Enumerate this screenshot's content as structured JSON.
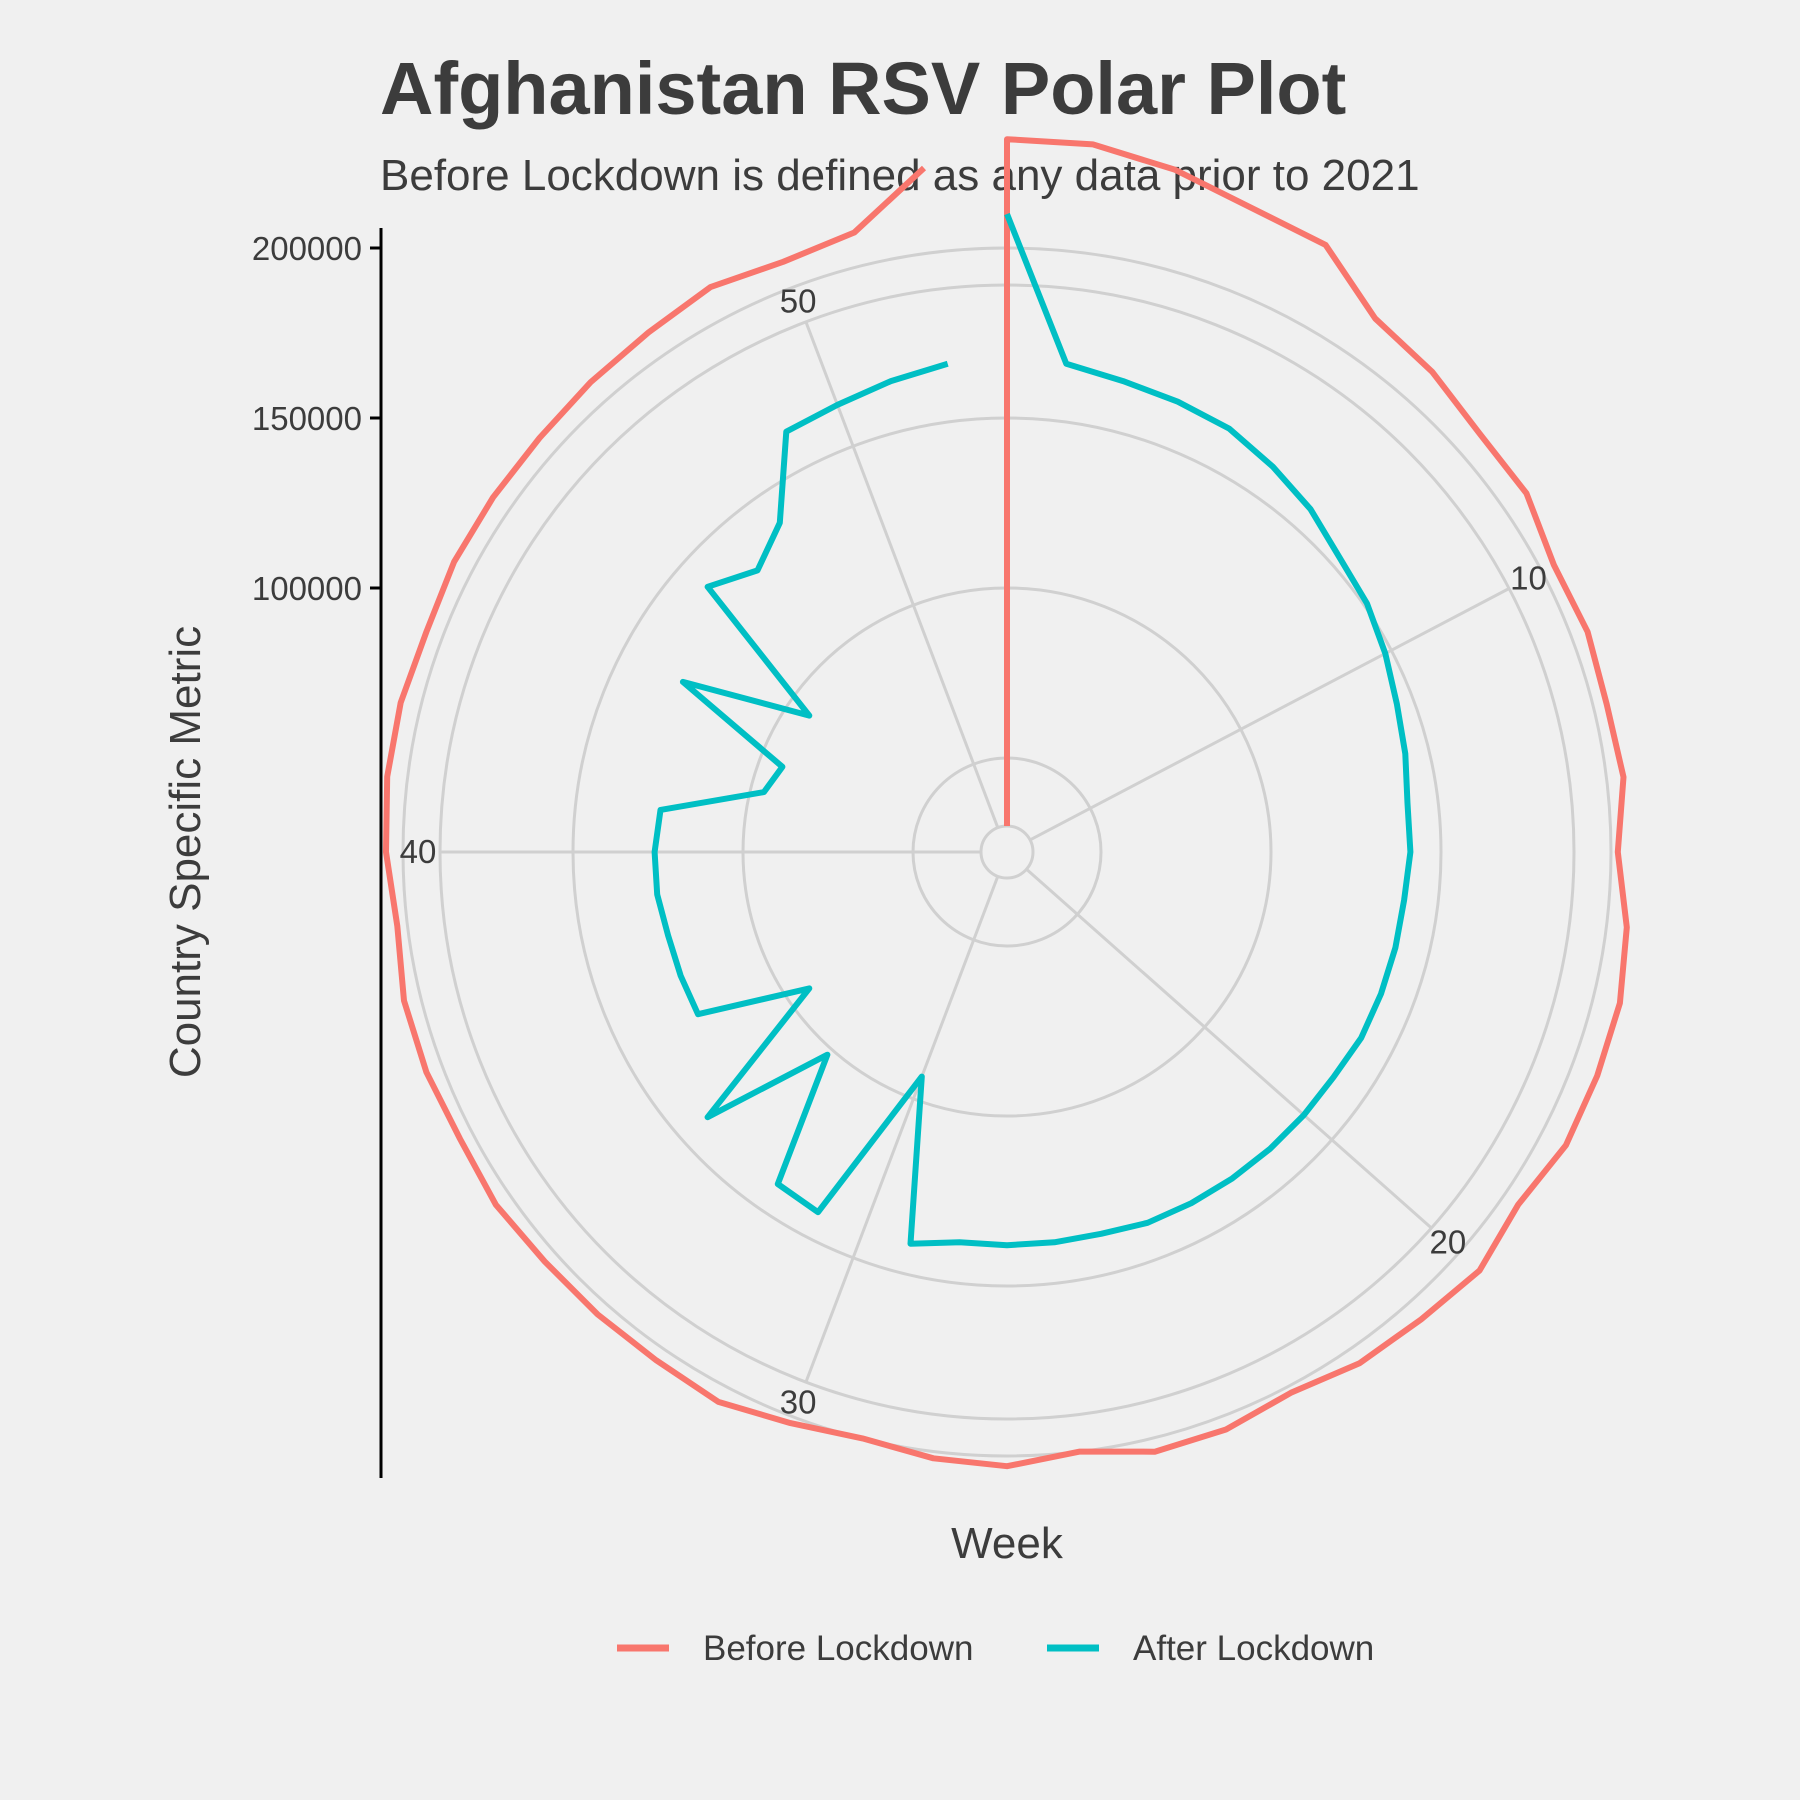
{
  "chart_data": {
    "type": "line",
    "coordinate_system": "polar",
    "title": "Afghanistan RSV Polar Plot",
    "subtitle": "Before Lockdown is defined as any data prior to 2021",
    "xlabel": "Week",
    "ylabel": "Country Specific Metric",
    "x_ticks": [
      "10",
      "20",
      "30",
      "40",
      "50"
    ],
    "y_ticks": [
      "100000",
      "150000",
      "200000"
    ],
    "ylim": [
      30000,
      245000
    ],
    "week_range": [
      1,
      53
    ],
    "grid": true,
    "legend_position": "bottom",
    "series": [
      {
        "name": "Before Lockdown",
        "color": "#F8766D",
        "x": [
          1,
          1,
          2,
          3,
          4,
          5,
          6,
          7,
          8,
          9,
          10,
          11,
          12,
          13,
          14,
          15,
          16,
          17,
          18,
          19,
          20,
          21,
          22,
          23,
          24,
          25,
          26,
          27,
          28,
          29,
          30,
          31,
          32,
          33,
          34,
          35,
          36,
          37,
          38,
          39,
          40,
          41,
          42,
          43,
          44,
          45,
          46,
          47,
          48,
          49,
          50,
          51,
          52
        ],
        "y": [
          30000,
          232000,
          232000,
          229000,
          225000,
          224000,
          213000,
          211000,
          208000,
          208000,
          204000,
          205000,
          204000,
          205000,
          202000,
          206000,
          208000,
          208000,
          208000,
          205000,
          208000,
          206000,
          205000,
          202000,
          204000,
          204000,
          200000,
          203000,
          202000,
          200000,
          202000,
          205000,
          204000,
          204000,
          204000,
          205000,
          204000,
          205000,
          205000,
          203000,
          205000,
          206000,
          206000,
          205000,
          206000,
          206000,
          206000,
          207000,
          208000,
          210000,
          208000,
          210000,
          225000
        ]
      },
      {
        "name": "After Lockdown",
        "color": "#00BFC4",
        "x": [
          1,
          2,
          3,
          4,
          5,
          6,
          7,
          8,
          9,
          10,
          11,
          12,
          13,
          14,
          15,
          16,
          17,
          18,
          19,
          20,
          21,
          22,
          23,
          24,
          25,
          26,
          27,
          28,
          29,
          30,
          31,
          32,
          33,
          34,
          35,
          36,
          37,
          38,
          39,
          40,
          41,
          42,
          43,
          44,
          45,
          46,
          47,
          48,
          49,
          50,
          51,
          52
        ],
        "y": [
          210000,
          167000,
          165000,
          164000,
          163000,
          160000,
          157000,
          153000,
          151000,
          148000,
          145000,
          143000,
          141000,
          141000,
          140000,
          140000,
          140000,
          140000,
          139000,
          139000,
          139000,
          139000,
          139000,
          139000,
          138000,
          138000,
          138000,
          138000,
          141000,
          93000,
          142000,
          141000,
          102000,
          140000,
          93000,
          125000,
          125000,
          125000,
          126000,
          126000,
          125000,
          96000,
          93000,
          130000,
          93000,
          140000,
          133000,
          140000,
          162000,
          163000,
          165000,
          167000
        ]
      }
    ]
  }
}
